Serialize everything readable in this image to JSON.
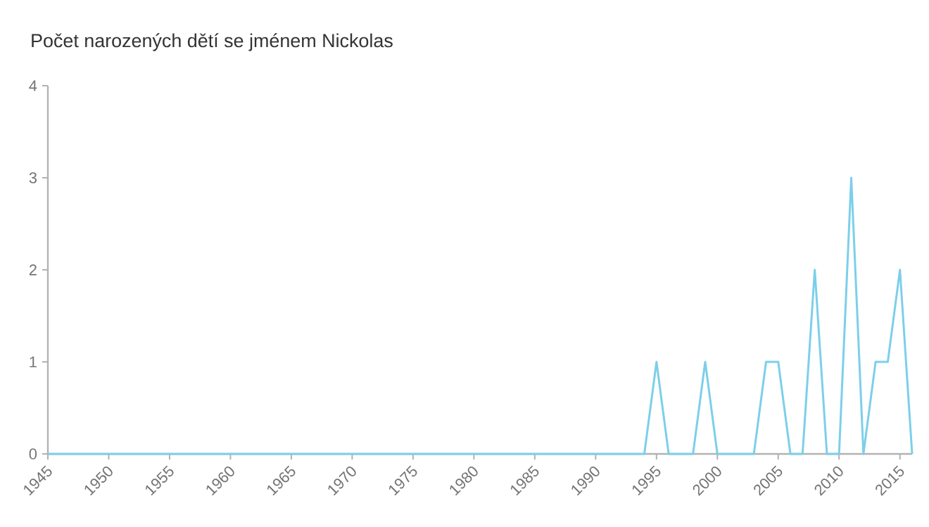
{
  "chart_data": {
    "type": "line",
    "title": "Počet narozených dětí se jménem Nickolas",
    "x": [
      1945,
      1946,
      1947,
      1948,
      1949,
      1950,
      1951,
      1952,
      1953,
      1954,
      1955,
      1956,
      1957,
      1958,
      1959,
      1960,
      1961,
      1962,
      1963,
      1964,
      1965,
      1966,
      1967,
      1968,
      1969,
      1970,
      1971,
      1972,
      1973,
      1974,
      1975,
      1976,
      1977,
      1978,
      1979,
      1980,
      1981,
      1982,
      1983,
      1984,
      1985,
      1986,
      1987,
      1988,
      1989,
      1990,
      1991,
      1992,
      1993,
      1994,
      1995,
      1996,
      1997,
      1998,
      1999,
      2000,
      2001,
      2002,
      2003,
      2004,
      2005,
      2006,
      2007,
      2008,
      2009,
      2010,
      2011,
      2012,
      2013,
      2014,
      2015,
      2016
    ],
    "series": [
      {
        "color": "#7ccfea",
        "values": [
          0,
          0,
          0,
          0,
          0,
          0,
          0,
          0,
          0,
          0,
          0,
          0,
          0,
          0,
          0,
          0,
          0,
          0,
          0,
          0,
          0,
          0,
          0,
          0,
          0,
          0,
          0,
          0,
          0,
          0,
          0,
          0,
          0,
          0,
          0,
          0,
          0,
          0,
          0,
          0,
          0,
          0,
          0,
          0,
          0,
          0,
          0,
          0,
          0,
          0,
          1,
          0,
          0,
          0,
          1,
          0,
          0,
          0,
          0,
          1,
          1,
          0,
          0,
          2,
          0,
          0,
          3,
          0,
          1,
          1,
          2,
          0
        ]
      }
    ],
    "xlim": [
      1945,
      2016
    ],
    "xticks": [
      1945,
      1950,
      1955,
      1960,
      1965,
      1970,
      1975,
      1980,
      1985,
      1990,
      1995,
      2000,
      2005,
      2010,
      2015
    ],
    "ylim": [
      0,
      4
    ],
    "yticks": [
      0,
      1,
      2,
      3,
      4
    ],
    "grid": false,
    "marker": "none",
    "line_style": "solid"
  }
}
